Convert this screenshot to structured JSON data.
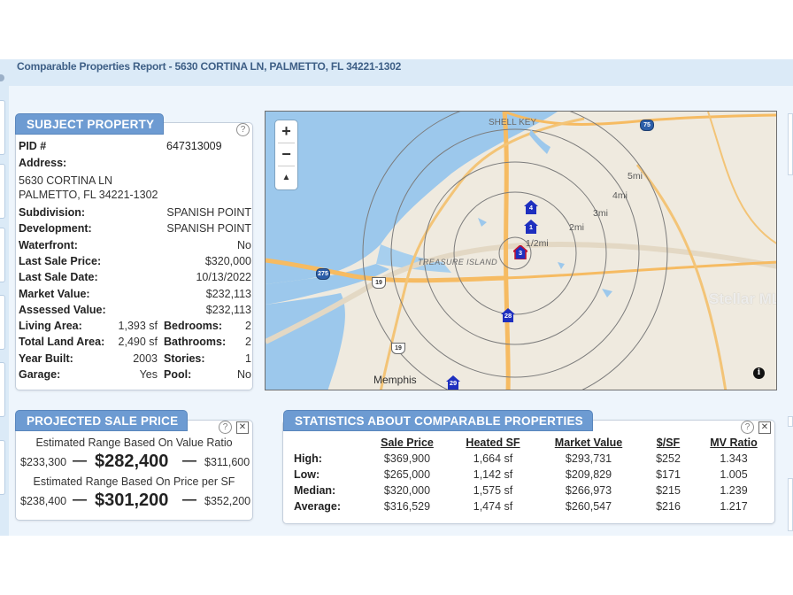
{
  "report": {
    "title": "Comparable Properties Report - 5630 CORTINA LN, PALMETTO, FL 34221-1302"
  },
  "subject": {
    "tab_label": "SUBJECT PROPERTY",
    "help_icon": "?",
    "pid_label": "PID #",
    "pid_value": "647313009",
    "address_label": "Address:",
    "address_line1": "5630 CORTINA LN",
    "address_line2": "PALMETTO, FL 34221-1302",
    "rows": [
      {
        "label": "Subdivision:",
        "value": "SPANISH POINT"
      },
      {
        "label": "Development:",
        "value": "SPANISH POINT"
      },
      {
        "label": "Waterfront:",
        "value": "No"
      },
      {
        "label": "Last Sale Price:",
        "value": "$320,000"
      },
      {
        "label": "Last Sale Date:",
        "value": "10/13/2022"
      },
      {
        "label": "Market Value:",
        "value": "$232,113"
      },
      {
        "label": "Assessed Value:",
        "value": "$232,113"
      }
    ],
    "pairs": [
      {
        "l1": "Living Area:",
        "v1": "1,393 sf",
        "l2": "Bedrooms:",
        "v2": "2"
      },
      {
        "l1": "Total Land Area:",
        "v1": "2,490 sf",
        "l2": "Bathrooms:",
        "v2": "2"
      },
      {
        "l1": "Year Built:",
        "v1": "2003",
        "l2": "Stories:",
        "v2": "1"
      },
      {
        "l1": "Garage:",
        "v1": "Yes",
        "l2": "Pool:",
        "v2": "No"
      }
    ]
  },
  "projected": {
    "tab_label": "PROJECTED SALE PRICE",
    "help_icon": "?",
    "close_icon": "✕",
    "ratio": {
      "caption": "Estimated Range Based On Value Ratio",
      "low": "$233,300",
      "main": "$282,400",
      "high": "$311,600"
    },
    "psf": {
      "caption": "Estimated Range Based On Price per SF",
      "low": "$238,400",
      "main": "$301,200",
      "high": "$352,200"
    },
    "dash": "—"
  },
  "stats": {
    "tab_label": "STATISTICS ABOUT COMPARABLE PROPERTIES",
    "help_icon": "?",
    "close_icon": "✕",
    "headers": [
      "Sale Price",
      "Heated SF",
      "Market Value",
      "$/SF",
      "MV Ratio"
    ],
    "rows": [
      {
        "label": "High:",
        "values": [
          "$369,900",
          "1,664 sf",
          "$293,731",
          "$252",
          "1.343"
        ]
      },
      {
        "label": "Low:",
        "values": [
          "$265,000",
          "1,142 sf",
          "$209,829",
          "$171",
          "1.005"
        ]
      },
      {
        "label": "Median:",
        "values": [
          "$320,000",
          "1,575 sf",
          "$266,973",
          "$215",
          "1.239"
        ]
      },
      {
        "label": "Average:",
        "values": [
          "$316,529",
          "1,474 sf",
          "$260,547",
          "$216",
          "1.217"
        ]
      }
    ]
  },
  "map": {
    "zoom_in": "+",
    "zoom_out": "−",
    "compass": "▲",
    "info": "i",
    "watermark": "Stellar MLS",
    "labels": {
      "shell_key": "SHELL KEY",
      "treasure_island": "TREASURE ISLAND",
      "memphis": "Memphis"
    },
    "rings": [
      "5mi",
      "4mi",
      "3mi",
      "2mi",
      "1/2mi"
    ],
    "shields": {
      "i75": "75",
      "i275": "275",
      "us19a": "19",
      "us19b": "19"
    },
    "markers": [
      "4",
      "1",
      "3",
      "28",
      "29"
    ],
    "colors": {
      "water": "#9cc8ec",
      "land": "#efeadf",
      "highway": "#f6bb62",
      "marker": "#1e2fbf"
    }
  }
}
